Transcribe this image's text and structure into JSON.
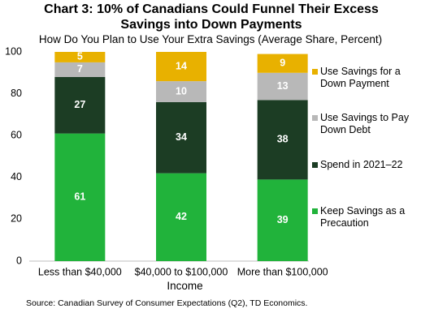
{
  "chart_data": {
    "type": "stacked_bar",
    "title": "Chart 3: 10% of Canadians Could Funnel Their Excess Savings into Down Payments",
    "subtitle": "How Do You Plan to Use Your Extra Savings (Average Share, Percent)",
    "x_label": "Income",
    "source": "Source: Canadian Survey of Consumer Expectations (Q2), TD Economics.",
    "categories": [
      "Less than $40,000",
      "$40,000 to $100,000",
      "More than $100,000"
    ],
    "series": [
      {
        "name": "Keep Savings as a Precaution",
        "color": "#21b33b",
        "values": [
          61,
          42,
          39
        ]
      },
      {
        "name": "Spend in 2021–22",
        "color": "#1c3d24",
        "values": [
          27,
          34,
          38
        ]
      },
      {
        "name": "Use Savings to Pay Down Debt",
        "color": "#b8b8b8",
        "values": [
          7,
          10,
          13
        ]
      },
      {
        "name": "Use Savings for a Down Payment",
        "color": "#e8b100",
        "values": [
          5,
          14,
          9
        ]
      }
    ],
    "ylim": [
      0,
      100
    ],
    "yticks": [
      0,
      20,
      40,
      60,
      80,
      100
    ],
    "legend": "right"
  }
}
